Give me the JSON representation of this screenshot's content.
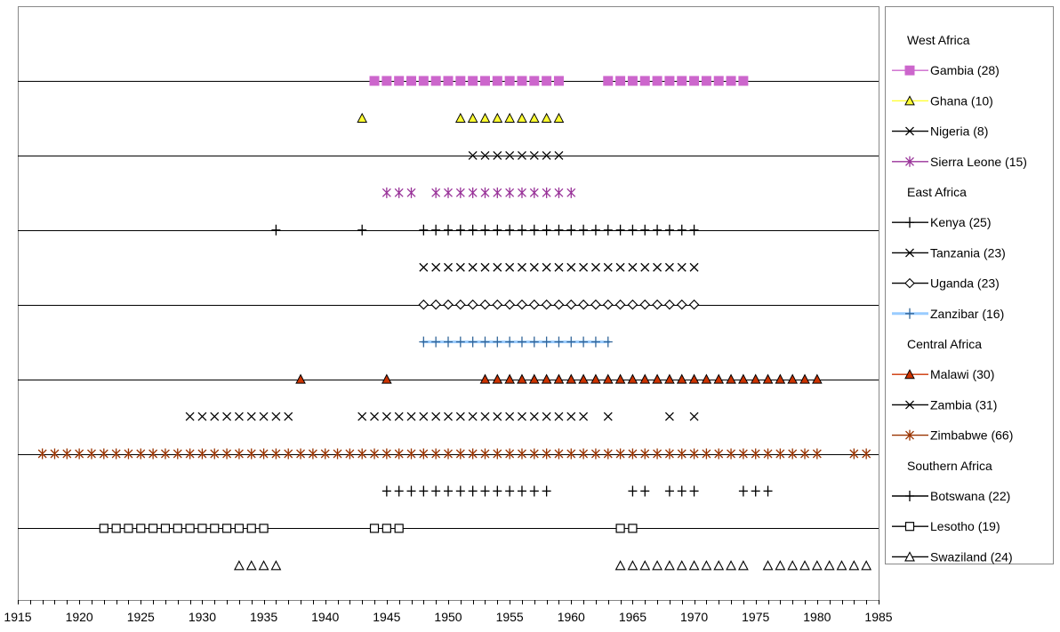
{
  "chart_data": {
    "type": "scatter",
    "title": "",
    "xlabel": "",
    "ylabel": "",
    "xlim": [
      1915,
      1985
    ],
    "xtick_step": 5,
    "xtick_labels": [
      "1915",
      "1920",
      "1925",
      "1930",
      "1935",
      "1940",
      "1945",
      "1950",
      "1955",
      "1960",
      "1965",
      "1970",
      "1975",
      "1980",
      "1985"
    ],
    "grid": "horizontal",
    "legend_position": "right",
    "legend": [
      {
        "type": "header",
        "label": "West Africa"
      },
      {
        "type": "series",
        "index": 0
      },
      {
        "type": "series",
        "index": 1
      },
      {
        "type": "series",
        "index": 2
      },
      {
        "type": "series",
        "index": 3
      },
      {
        "type": "header",
        "label": "East Africa"
      },
      {
        "type": "series",
        "index": 4
      },
      {
        "type": "series",
        "index": 5
      },
      {
        "type": "series",
        "index": 6
      },
      {
        "type": "series",
        "index": 7
      },
      {
        "type": "header",
        "label": "Central Africa"
      },
      {
        "type": "series",
        "index": 8
      },
      {
        "type": "series",
        "index": 9
      },
      {
        "type": "series",
        "index": 10
      },
      {
        "type": "header",
        "label": "Southern Africa"
      },
      {
        "type": "series",
        "index": 11
      },
      {
        "type": "series",
        "index": 12
      },
      {
        "type": "series",
        "index": 13
      }
    ],
    "series": [
      {
        "name": "Gambia (28)",
        "marker": "square",
        "color": "#CC66CC",
        "x": [
          1944,
          1945,
          1946,
          1947,
          1948,
          1949,
          1950,
          1951,
          1952,
          1953,
          1954,
          1955,
          1956,
          1957,
          1958,
          1959,
          1963,
          1964,
          1965,
          1966,
          1967,
          1968,
          1969,
          1970,
          1971,
          1972,
          1973,
          1974
        ]
      },
      {
        "name": "Ghana (10)",
        "marker": "triangle",
        "color": "#FFFF33",
        "x": [
          1943,
          1951,
          1952,
          1953,
          1954,
          1955,
          1956,
          1957,
          1958,
          1959
        ]
      },
      {
        "name": "Nigeria (8)",
        "marker": "x",
        "color": "#000000",
        "x": [
          1952,
          1953,
          1954,
          1955,
          1956,
          1957,
          1958,
          1959
        ]
      },
      {
        "name": "Sierra Leone (15)",
        "marker": "star",
        "color": "#993399",
        "x": [
          1945,
          1946,
          1947,
          1949,
          1950,
          1951,
          1952,
          1953,
          1954,
          1955,
          1956,
          1957,
          1958,
          1959,
          1960
        ]
      },
      {
        "name": "Kenya (25)",
        "marker": "plus",
        "color": "#000000",
        "x": [
          1936,
          1943,
          1948,
          1949,
          1950,
          1951,
          1952,
          1953,
          1954,
          1955,
          1956,
          1957,
          1958,
          1959,
          1960,
          1961,
          1962,
          1963,
          1964,
          1965,
          1966,
          1967,
          1968,
          1969,
          1970
        ]
      },
      {
        "name": "Tanzania (23)",
        "marker": "x",
        "color": "#000000",
        "x": [
          1948,
          1949,
          1950,
          1951,
          1952,
          1953,
          1954,
          1955,
          1956,
          1957,
          1958,
          1959,
          1960,
          1961,
          1962,
          1963,
          1964,
          1965,
          1966,
          1967,
          1968,
          1969,
          1970
        ]
      },
      {
        "name": "Uganda (23)",
        "marker": "diamond",
        "color": "#000000",
        "x": [
          1948,
          1949,
          1950,
          1951,
          1952,
          1953,
          1954,
          1955,
          1956,
          1957,
          1958,
          1959,
          1960,
          1961,
          1962,
          1963,
          1964,
          1965,
          1966,
          1967,
          1968,
          1969,
          1970
        ]
      },
      {
        "name": "Zanzibar (16)",
        "marker": "plus",
        "color": "#336699",
        "line_color": "#99CCFF",
        "x": [
          1948,
          1949,
          1950,
          1951,
          1952,
          1953,
          1954,
          1955,
          1956,
          1957,
          1958,
          1959,
          1960,
          1961,
          1962,
          1963
        ]
      },
      {
        "name": "Malawi (30)",
        "marker": "triangle",
        "color": "#CC3300",
        "x": [
          1938,
          1945,
          1953,
          1954,
          1955,
          1956,
          1957,
          1958,
          1959,
          1960,
          1961,
          1962,
          1963,
          1964,
          1965,
          1966,
          1967,
          1968,
          1969,
          1970,
          1971,
          1972,
          1973,
          1974,
          1975,
          1976,
          1977,
          1978,
          1979,
          1980
        ]
      },
      {
        "name": "Zambia (31)",
        "marker": "x",
        "color": "#000000",
        "x": [
          1929,
          1930,
          1931,
          1932,
          1933,
          1934,
          1935,
          1936,
          1937,
          1943,
          1944,
          1945,
          1946,
          1947,
          1948,
          1949,
          1950,
          1951,
          1952,
          1953,
          1954,
          1955,
          1956,
          1957,
          1958,
          1959,
          1960,
          1961,
          1963,
          1968,
          1970
        ]
      },
      {
        "name": "Zimbabwe (66)",
        "marker": "star",
        "color": "#993300",
        "x": [
          1917,
          1918,
          1919,
          1920,
          1921,
          1922,
          1923,
          1924,
          1925,
          1926,
          1927,
          1928,
          1929,
          1930,
          1931,
          1932,
          1933,
          1934,
          1935,
          1936,
          1937,
          1938,
          1939,
          1940,
          1941,
          1942,
          1943,
          1944,
          1945,
          1946,
          1947,
          1948,
          1949,
          1950,
          1951,
          1952,
          1953,
          1954,
          1955,
          1956,
          1957,
          1958,
          1959,
          1960,
          1961,
          1962,
          1963,
          1964,
          1965,
          1966,
          1967,
          1968,
          1969,
          1970,
          1971,
          1972,
          1973,
          1974,
          1975,
          1976,
          1977,
          1978,
          1979,
          1980,
          1983,
          1984
        ]
      },
      {
        "name": "Botswana (22)",
        "marker": "plus",
        "color": "#000000",
        "x": [
          1945,
          1946,
          1947,
          1948,
          1949,
          1950,
          1951,
          1952,
          1953,
          1954,
          1955,
          1956,
          1957,
          1958,
          1965,
          1966,
          1968,
          1969,
          1970,
          1974,
          1975,
          1976
        ]
      },
      {
        "name": "Lesotho (19)",
        "marker": "square-open",
        "color": "#000000",
        "x": [
          1922,
          1923,
          1924,
          1925,
          1926,
          1927,
          1928,
          1929,
          1930,
          1931,
          1932,
          1933,
          1934,
          1935,
          1944,
          1945,
          1946,
          1964,
          1965
        ]
      },
      {
        "name": "Swaziland (24)",
        "marker": "triangle-open",
        "color": "#000000",
        "x": [
          1933,
          1934,
          1935,
          1936,
          1964,
          1965,
          1966,
          1967,
          1968,
          1969,
          1970,
          1971,
          1972,
          1973,
          1974,
          1976,
          1977,
          1978,
          1979,
          1980,
          1981,
          1982,
          1983,
          1984
        ]
      }
    ]
  }
}
